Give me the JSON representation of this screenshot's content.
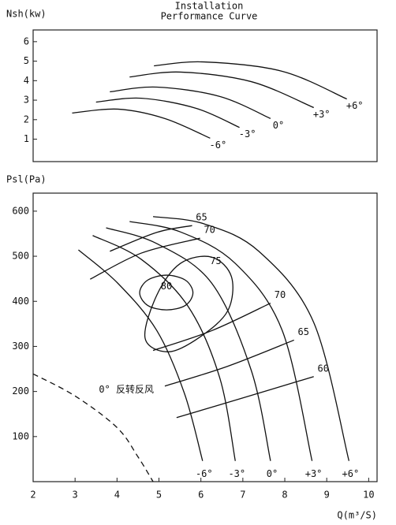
{
  "chart_data": [
    {
      "type": "line",
      "title": "Installation",
      "subtitle": "Performance Curve",
      "y_label": "Nsh(kw)",
      "xlim": [
        2,
        10.2
      ],
      "ylim": [
        -0.15,
        6.6
      ],
      "yticks": [
        1,
        2,
        3,
        4,
        5,
        6
      ],
      "series": [
        {
          "name": "-6°",
          "color": "#111",
          "x": [
            2.93,
            4.02,
            5.14,
            6.22
          ],
          "values": [
            2.34,
            2.54,
            2.06,
            1.05
          ]
        },
        {
          "name": "-3°",
          "color": "#111",
          "x": [
            3.5,
            4.58,
            5.89,
            6.92
          ],
          "values": [
            2.9,
            3.1,
            2.58,
            1.6
          ]
        },
        {
          "name": "0°",
          "color": "#111",
          "x": [
            3.83,
            4.95,
            6.45,
            7.66
          ],
          "values": [
            3.43,
            3.67,
            3.19,
            2.06
          ]
        },
        {
          "name": "+3°",
          "color": "#111",
          "x": [
            4.3,
            5.51,
            7.2,
            8.69
          ],
          "values": [
            4.19,
            4.44,
            3.95,
            2.62
          ]
        },
        {
          "name": "+6°",
          "color": "#111",
          "x": [
            4.88,
            6.07,
            7.94,
            9.48
          ],
          "values": [
            4.76,
            4.96,
            4.48,
            3.06
          ]
        }
      ]
    },
    {
      "type": "line",
      "y_label": "Psl(Pa)",
      "x_label": "Q(m³/S)",
      "xlim": [
        2,
        10.2
      ],
      "ylim": [
        0,
        640
      ],
      "xticks": [
        2,
        3,
        4,
        5,
        6,
        7,
        8,
        9,
        10
      ],
      "yticks": [
        100,
        200,
        300,
        400,
        500,
        600
      ],
      "series": [
        {
          "name": "-6°",
          "color": "#111",
          "x": [
            3.08,
            4.02,
            4.95,
            5.61,
            6.04
          ],
          "values": [
            514,
            440,
            335,
            195,
            46
          ]
        },
        {
          "name": "-3°",
          "color": "#111",
          "x": [
            3.42,
            4.58,
            5.7,
            6.45,
            6.82
          ],
          "values": [
            546,
            493,
            388,
            230,
            46
          ]
        },
        {
          "name": "0°",
          "color": "#111",
          "x": [
            3.74,
            4.95,
            6.26,
            7.2,
            7.66
          ],
          "values": [
            563,
            528,
            440,
            247,
            46
          ]
        },
        {
          "name": "+3°",
          "color": "#111",
          "x": [
            4.3,
            5.51,
            6.82,
            7.94,
            8.65
          ],
          "values": [
            577,
            554,
            484,
            335,
            46
          ]
        },
        {
          "name": "+6°",
          "color": "#111",
          "x": [
            4.86,
            6.07,
            7.38,
            8.69,
            9.53
          ],
          "values": [
            588,
            572,
            511,
            353,
            46
          ]
        }
      ],
      "contours": [
        {
          "name": "65",
          "closed": false,
          "x": [
            3.83,
            4.95,
            5.79
          ],
          "values": [
            511,
            553,
            568
          ]
        },
        {
          "name": "70",
          "closed": false,
          "x": [
            3.36,
            4.58,
            5.98
          ],
          "values": [
            449,
            507,
            540
          ]
        },
        {
          "name": "75",
          "closed": true,
          "x": [
            4.67,
            4.95,
            5.51,
            6.26,
            6.73,
            6.64,
            5.98,
            5.23
          ],
          "values": [
            318,
            414,
            484,
            498,
            454,
            379,
            321,
            288
          ]
        },
        {
          "name": "80",
          "closed": true,
          "x": [
            4.54,
            4.73,
            5.18,
            5.63,
            5.81,
            5.63,
            5.18,
            4.73
          ],
          "values": [
            419,
            447,
            458,
            447,
            419,
            391,
            381,
            391
          ]
        },
        {
          "name": "70",
          "closed": false,
          "x": [
            4.86,
            6.26,
            7.66
          ],
          "values": [
            291,
            335,
            396
          ]
        },
        {
          "name": "65",
          "closed": false,
          "x": [
            5.14,
            6.64,
            8.22
          ],
          "values": [
            212,
            256,
            314
          ]
        },
        {
          "name": "60",
          "closed": false,
          "x": [
            5.42,
            7.01,
            8.69
          ],
          "values": [
            142,
            186,
            233
          ]
        }
      ],
      "reverse": {
        "name": "0° 反转反风",
        "dashed": true,
        "x": [
          2,
          3,
          4,
          4.5,
          4.86
        ],
        "values": [
          239,
          190,
          120,
          55,
          0
        ]
      }
    }
  ]
}
